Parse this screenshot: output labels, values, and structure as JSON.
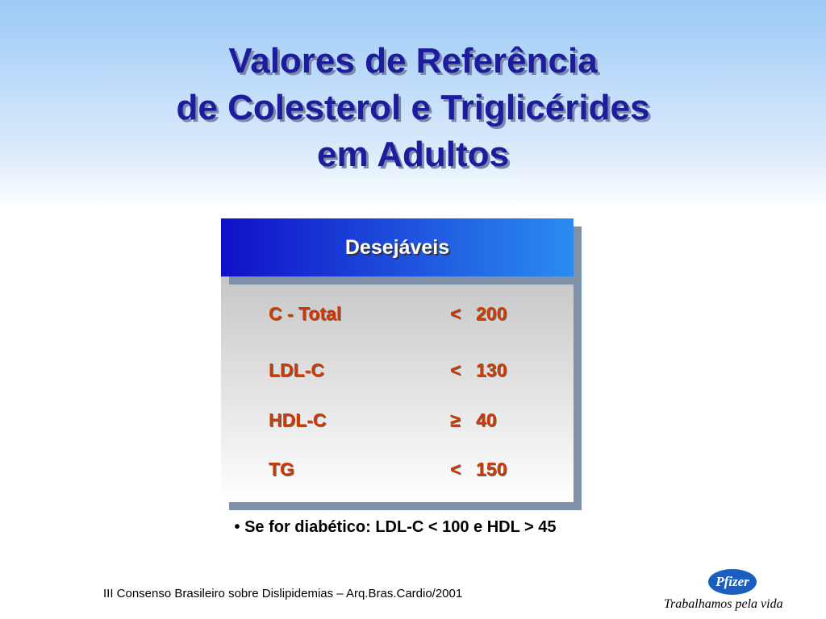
{
  "header": {
    "title": [
      "Valores de Referência",
      "de Colesterol e Triglicérides",
      "em Adultos"
    ]
  },
  "table": {
    "heading": "Desejáveis",
    "rows": [
      [
        "C - Total",
        "<",
        "200"
      ],
      [
        "LDL-C",
        "<",
        "130"
      ],
      [
        "HDL-C",
        "≥",
        "40"
      ],
      [
        "TG",
        "<",
        "150"
      ]
    ]
  },
  "note": "• Se for diabético: LDL-C < 100 e HDL > 45",
  "footer": {
    "citation": "III Consenso Brasileiro sobre Dislipidemias – Arq.Bras.Cardio/2001",
    "logo": "Pfizer",
    "tagline": "Trabalhamos pela vida"
  }
}
